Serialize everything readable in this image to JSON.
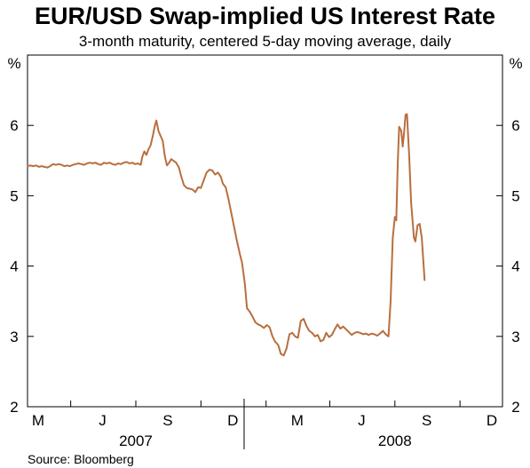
{
  "chart_data": {
    "type": "line",
    "title": "EUR/USD Swap-implied US Interest Rate",
    "subtitle": "3-month maturity, centered 5-day moving average, daily",
    "ylabel_left": "%",
    "ylabel_right": "%",
    "ylim": [
      2,
      7
    ],
    "yticks": [
      2,
      3,
      4,
      5,
      6
    ],
    "xlim": [
      "2007-03-01",
      "2008-12-31"
    ],
    "month_labels": [
      {
        "label": "M",
        "date": "2007-03-16"
      },
      {
        "label": "J",
        "date": "2007-06-15"
      },
      {
        "label": "S",
        "date": "2007-09-15"
      },
      {
        "label": "D",
        "date": "2007-12-16"
      },
      {
        "label": "M",
        "date": "2008-03-16"
      },
      {
        "label": "J",
        "date": "2008-06-15"
      },
      {
        "label": "S",
        "date": "2008-09-15"
      },
      {
        "label": "D",
        "date": "2008-12-16"
      }
    ],
    "year_labels": [
      {
        "label": "2007",
        "date": "2007-08-01"
      },
      {
        "label": "2008",
        "date": "2008-08-01"
      }
    ],
    "color": "#b86f3f",
    "grid": false,
    "series": [
      {
        "points": [
          [
            "2007-03-01",
            5.42
          ],
          [
            "2007-03-05",
            5.43
          ],
          [
            "2007-03-09",
            5.42
          ],
          [
            "2007-03-13",
            5.43
          ],
          [
            "2007-03-17",
            5.41
          ],
          [
            "2007-03-21",
            5.42
          ],
          [
            "2007-03-25",
            5.41
          ],
          [
            "2007-03-29",
            5.4
          ],
          [
            "2007-04-02",
            5.42
          ],
          [
            "2007-04-06",
            5.45
          ],
          [
            "2007-04-10",
            5.44
          ],
          [
            "2007-04-14",
            5.45
          ],
          [
            "2007-04-18",
            5.44
          ],
          [
            "2007-04-22",
            5.42
          ],
          [
            "2007-04-26",
            5.43
          ],
          [
            "2007-04-30",
            5.42
          ],
          [
            "2007-05-04",
            5.44
          ],
          [
            "2007-05-08",
            5.45
          ],
          [
            "2007-05-12",
            5.46
          ],
          [
            "2007-05-16",
            5.45
          ],
          [
            "2007-05-20",
            5.44
          ],
          [
            "2007-05-24",
            5.46
          ],
          [
            "2007-05-28",
            5.47
          ],
          [
            "2007-06-01",
            5.46
          ],
          [
            "2007-06-05",
            5.47
          ],
          [
            "2007-06-09",
            5.45
          ],
          [
            "2007-06-13",
            5.44
          ],
          [
            "2007-06-17",
            5.47
          ],
          [
            "2007-06-21",
            5.46
          ],
          [
            "2007-06-25",
            5.47
          ],
          [
            "2007-06-29",
            5.45
          ],
          [
            "2007-07-03",
            5.44
          ],
          [
            "2007-07-07",
            5.46
          ],
          [
            "2007-07-11",
            5.45
          ],
          [
            "2007-07-15",
            5.47
          ],
          [
            "2007-07-19",
            5.48
          ],
          [
            "2007-07-23",
            5.46
          ],
          [
            "2007-07-27",
            5.47
          ],
          [
            "2007-07-31",
            5.45
          ],
          [
            "2007-08-04",
            5.46
          ],
          [
            "2007-08-08",
            5.44
          ],
          [
            "2007-08-10",
            5.55
          ],
          [
            "2007-08-13",
            5.63
          ],
          [
            "2007-08-16",
            5.58
          ],
          [
            "2007-08-19",
            5.66
          ],
          [
            "2007-08-22",
            5.72
          ],
          [
            "2007-08-25",
            5.85
          ],
          [
            "2007-08-28",
            6.0
          ],
          [
            "2007-08-30",
            6.07
          ],
          [
            "2007-09-02",
            5.92
          ],
          [
            "2007-09-05",
            5.85
          ],
          [
            "2007-09-08",
            5.78
          ],
          [
            "2007-09-11",
            5.56
          ],
          [
            "2007-09-14",
            5.43
          ],
          [
            "2007-09-17",
            5.47
          ],
          [
            "2007-09-20",
            5.52
          ],
          [
            "2007-09-23",
            5.5
          ],
          [
            "2007-09-27",
            5.47
          ],
          [
            "2007-10-01",
            5.4
          ],
          [
            "2007-10-04",
            5.28
          ],
          [
            "2007-10-08",
            5.15
          ],
          [
            "2007-10-12",
            5.11
          ],
          [
            "2007-10-16",
            5.1
          ],
          [
            "2007-10-20",
            5.09
          ],
          [
            "2007-10-24",
            5.05
          ],
          [
            "2007-10-28",
            5.12
          ],
          [
            "2007-11-01",
            5.11
          ],
          [
            "2007-11-05",
            5.22
          ],
          [
            "2007-11-09",
            5.33
          ],
          [
            "2007-11-13",
            5.37
          ],
          [
            "2007-11-17",
            5.36
          ],
          [
            "2007-11-21",
            5.3
          ],
          [
            "2007-11-25",
            5.33
          ],
          [
            "2007-11-29",
            5.27
          ],
          [
            "2007-12-02",
            5.17
          ],
          [
            "2007-12-06",
            5.12
          ],
          [
            "2007-12-10",
            4.95
          ],
          [
            "2007-12-14",
            4.75
          ],
          [
            "2007-12-18",
            4.55
          ],
          [
            "2007-12-22",
            4.35
          ],
          [
            "2007-12-26",
            4.17
          ],
          [
            "2007-12-29",
            4.05
          ],
          [
            "2008-01-02",
            3.75
          ],
          [
            "2008-01-05",
            3.4
          ],
          [
            "2008-01-09",
            3.35
          ],
          [
            "2008-01-13",
            3.28
          ],
          [
            "2008-01-17",
            3.2
          ],
          [
            "2008-01-21",
            3.17
          ],
          [
            "2008-01-25",
            3.15
          ],
          [
            "2008-01-29",
            3.12
          ],
          [
            "2008-02-02",
            3.16
          ],
          [
            "2008-02-06",
            3.13
          ],
          [
            "2008-02-10",
            3.0
          ],
          [
            "2008-02-14",
            2.92
          ],
          [
            "2008-02-18",
            2.88
          ],
          [
            "2008-02-22",
            2.75
          ],
          [
            "2008-02-26",
            2.73
          ],
          [
            "2008-03-01",
            2.83
          ],
          [
            "2008-03-05",
            3.03
          ],
          [
            "2008-03-09",
            3.05
          ],
          [
            "2008-03-13",
            3.0
          ],
          [
            "2008-03-17",
            2.98
          ],
          [
            "2008-03-21",
            3.22
          ],
          [
            "2008-03-25",
            3.25
          ],
          [
            "2008-03-29",
            3.15
          ],
          [
            "2008-04-02",
            3.08
          ],
          [
            "2008-04-06",
            3.05
          ],
          [
            "2008-04-10",
            3.0
          ],
          [
            "2008-04-14",
            3.02
          ],
          [
            "2008-04-18",
            2.93
          ],
          [
            "2008-04-22",
            2.95
          ],
          [
            "2008-04-26",
            3.05
          ],
          [
            "2008-04-30",
            2.99
          ],
          [
            "2008-05-04",
            3.02
          ],
          [
            "2008-05-08",
            3.1
          ],
          [
            "2008-05-12",
            3.17
          ],
          [
            "2008-05-16",
            3.11
          ],
          [
            "2008-05-20",
            3.14
          ],
          [
            "2008-05-24",
            3.1
          ],
          [
            "2008-05-28",
            3.06
          ],
          [
            "2008-06-01",
            3.02
          ],
          [
            "2008-06-05",
            3.05
          ],
          [
            "2008-06-09",
            3.06
          ],
          [
            "2008-06-13",
            3.05
          ],
          [
            "2008-06-17",
            3.03
          ],
          [
            "2008-06-21",
            3.04
          ],
          [
            "2008-06-25",
            3.02
          ],
          [
            "2008-06-29",
            3.04
          ],
          [
            "2008-07-03",
            3.03
          ],
          [
            "2008-07-07",
            3.01
          ],
          [
            "2008-07-11",
            3.04
          ],
          [
            "2008-07-15",
            3.08
          ],
          [
            "2008-07-19",
            3.03
          ],
          [
            "2008-07-23",
            3.0
          ],
          [
            "2008-07-26",
            3.5
          ],
          [
            "2008-07-29",
            4.4
          ],
          [
            "2008-08-01",
            4.7
          ],
          [
            "2008-08-03",
            4.65
          ],
          [
            "2008-08-05",
            5.45
          ],
          [
            "2008-08-07",
            5.98
          ],
          [
            "2008-08-10",
            5.92
          ],
          [
            "2008-08-12",
            5.7
          ],
          [
            "2008-08-14",
            5.9
          ],
          [
            "2008-08-16",
            6.15
          ],
          [
            "2008-08-18",
            6.16
          ],
          [
            "2008-08-21",
            5.6
          ],
          [
            "2008-08-24",
            4.9
          ],
          [
            "2008-08-28",
            4.4
          ],
          [
            "2008-08-30",
            4.35
          ],
          [
            "2008-09-02",
            4.58
          ],
          [
            "2008-09-05",
            4.6
          ],
          [
            "2008-09-08",
            4.4
          ],
          [
            "2008-09-12",
            3.8
          ]
        ]
      }
    ]
  },
  "source": "Source: Bloomberg"
}
